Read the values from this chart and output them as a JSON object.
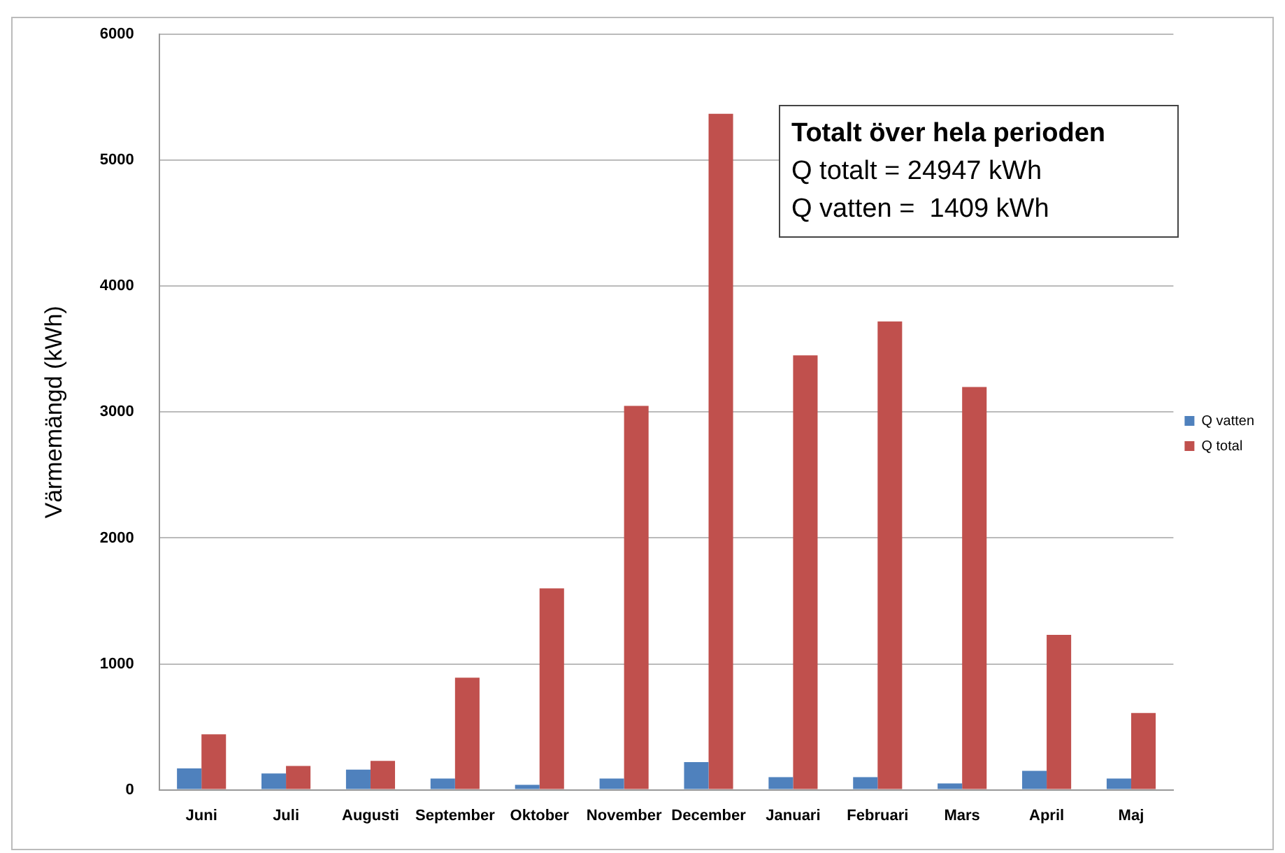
{
  "chart_data": {
    "type": "bar",
    "categories": [
      "Juni",
      "Juli",
      "Augusti",
      "September",
      "Oktober",
      "November",
      "December",
      "Januari",
      "Februari",
      "Mars",
      "April",
      "Maj"
    ],
    "series": [
      {
        "name": "Q vatten",
        "color": "#4f81bd",
        "values": [
          170,
          130,
          160,
          90,
          40,
          90,
          220,
          100,
          100,
          50,
          150,
          90
        ]
      },
      {
        "name": "Q total",
        "color": "#c0504d",
        "values": [
          440,
          190,
          230,
          890,
          1600,
          3050,
          5370,
          3450,
          3720,
          3200,
          1230,
          610
        ]
      }
    ],
    "ylabel": "Värmemängd (kWh)",
    "ylim": [
      0,
      6000
    ],
    "yticks": [
      0,
      1000,
      2000,
      3000,
      4000,
      5000,
      6000
    ],
    "grid": "y",
    "legend": "right",
    "annotations": [
      "Totalt över hela perioden",
      "Q totalt = 24947 kWh",
      "Q vatten =  1409 kWh"
    ]
  }
}
